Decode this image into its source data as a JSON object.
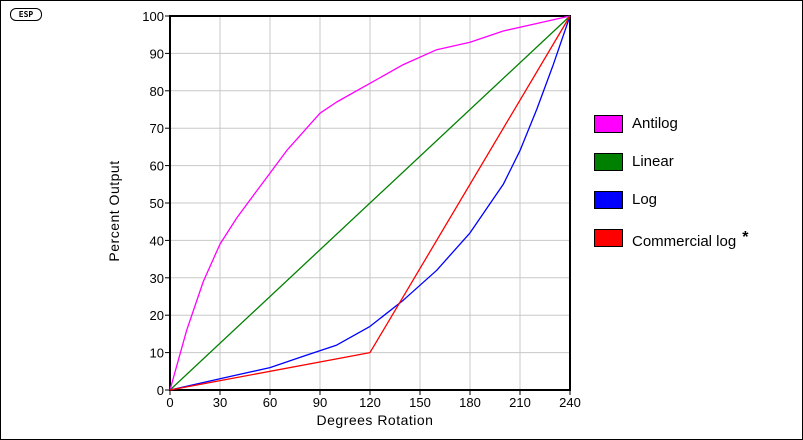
{
  "logo_text": "ESP",
  "chart_data": {
    "type": "line",
    "title": "",
    "xlabel": "Degrees Rotation",
    "ylabel": "Percent Output",
    "xlim": [
      0,
      240
    ],
    "ylim": [
      0,
      100
    ],
    "x_ticks": [
      "0",
      "30",
      "60",
      "90",
      "120",
      "150",
      "180",
      "210",
      "240"
    ],
    "y_ticks": [
      "0",
      "10",
      "20",
      "30",
      "40",
      "50",
      "60",
      "70",
      "80",
      "90",
      "100"
    ],
    "grid": true,
    "legend_position": "right",
    "series": [
      {
        "name": "Antilog",
        "color": "#ff00ff",
        "x": [
          0,
          10,
          20,
          30,
          40,
          50,
          60,
          70,
          80,
          90,
          100,
          120,
          140,
          160,
          180,
          200,
          220,
          240
        ],
        "y": [
          0,
          16,
          29,
          39,
          46,
          52,
          58,
          64,
          69,
          74,
          77,
          82,
          87,
          91,
          93,
          96,
          98,
          100
        ]
      },
      {
        "name": "Linear",
        "color": "#008000",
        "x": [
          0,
          240
        ],
        "y": [
          0,
          100
        ]
      },
      {
        "name": "Log",
        "color": "#0000ff",
        "x": [
          0,
          20,
          40,
          60,
          80,
          100,
          120,
          140,
          160,
          180,
          200,
          210,
          220,
          230,
          240
        ],
        "y": [
          0,
          2,
          4,
          6,
          9,
          12,
          17,
          24,
          32,
          42,
          55,
          64,
          75,
          87,
          100
        ]
      },
      {
        "name": "Commercial log",
        "note": "*",
        "color": "#ff0000",
        "x": [
          0,
          120,
          240
        ],
        "y": [
          0,
          10,
          100
        ]
      }
    ]
  }
}
